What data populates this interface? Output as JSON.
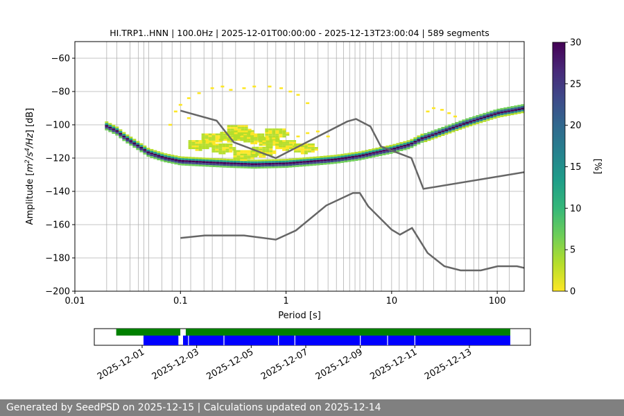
{
  "chart_data": [
    {
      "type": "heatmap",
      "title": "HI.TRP1..HNN | 100.0Hz | 2025-12-01T00:00:00 - 2025-12-13T23:00:04 | 589 segments",
      "xlabel": "Period [s]",
      "ylabel_parts": {
        "main": "Amplitude [",
        "m": "m",
        "e2": "2",
        "s": "/s",
        "e4": "4",
        "hz": "/Hz",
        "db": "] [dB]"
      },
      "x_scale": "log",
      "xlim": [
        0.01,
        180
      ],
      "ylim": [
        -200,
        -50
      ],
      "x_ticks": [
        {
          "v": 0.01,
          "label": "0.01"
        },
        {
          "v": 0.1,
          "label": "0.1"
        },
        {
          "v": 1,
          "label": "1"
        },
        {
          "v": 10,
          "label": "10"
        },
        {
          "v": 100,
          "label": "100"
        }
      ],
      "y_ticks": [
        {
          "v": -60,
          "label": "−60"
        },
        {
          "v": -80,
          "label": "−80"
        },
        {
          "v": -100,
          "label": "−100"
        },
        {
          "v": -120,
          "label": "−120"
        },
        {
          "v": -140,
          "label": "−140"
        },
        {
          "v": -160,
          "label": "−160"
        },
        {
          "v": -180,
          "label": "−180"
        },
        {
          "v": -200,
          "label": "−200"
        }
      ],
      "period_gridlines": [
        0.02,
        0.025,
        0.0333,
        0.04,
        0.045,
        0.05,
        0.0667,
        0.0833,
        0.1,
        0.125,
        0.167,
        0.2,
        0.25,
        0.333,
        0.5,
        0.667,
        0.8,
        1.0,
        1.2,
        1.5,
        2.0,
        2.5,
        3.0,
        3.5,
        4.0,
        4.5,
        5.0,
        5.7,
        6.7,
        8.0,
        10.0,
        11.8,
        14.0,
        17.0,
        20.0,
        25.0,
        33.0,
        40.0,
        50.0,
        60.0,
        67.0,
        80.0,
        100.0,
        130.0
      ],
      "grid": true,
      "mode_curve": [
        [
          0.02,
          -101
        ],
        [
          0.025,
          -104
        ],
        [
          0.03,
          -108
        ],
        [
          0.04,
          -113
        ],
        [
          0.05,
          -117
        ],
        [
          0.07,
          -120
        ],
        [
          0.1,
          -122
        ],
        [
          0.2,
          -123
        ],
        [
          0.3,
          -123.5
        ],
        [
          0.5,
          -124
        ],
        [
          1.0,
          -123.5
        ],
        [
          2.0,
          -122
        ],
        [
          3.0,
          -121
        ],
        [
          5.0,
          -119
        ],
        [
          7.0,
          -117
        ],
        [
          10.0,
          -115
        ],
        [
          15.0,
          -112
        ],
        [
          20.0,
          -108
        ],
        [
          30.0,
          -104
        ],
        [
          50.0,
          -99
        ],
        [
          100.0,
          -93
        ],
        [
          180.0,
          -90
        ]
      ],
      "noise_blob_points": [
        [
          0.2,
          -108
        ],
        [
          0.3,
          -107
        ],
        [
          0.4,
          -106
        ],
        [
          0.5,
          -108
        ],
        [
          0.7,
          -110
        ],
        [
          1.0,
          -112
        ],
        [
          1.5,
          -114
        ],
        [
          0.25,
          -114
        ],
        [
          0.4,
          -118
        ],
        [
          0.6,
          -116
        ],
        [
          0.8,
          -105
        ],
        [
          0.35,
          -103
        ],
        [
          0.15,
          -112
        ]
      ],
      "scatter_points": [
        [
          0.1,
          -88
        ],
        [
          0.12,
          -84
        ],
        [
          0.15,
          -81
        ],
        [
          0.2,
          -78
        ],
        [
          0.25,
          -77
        ],
        [
          0.3,
          -79
        ],
        [
          0.4,
          -78
        ],
        [
          0.5,
          -77
        ],
        [
          0.7,
          -77
        ],
        [
          0.9,
          -78
        ],
        [
          1.1,
          -80
        ],
        [
          1.3,
          -82
        ],
        [
          1.6,
          -87
        ],
        [
          0.09,
          -92
        ],
        [
          0.12,
          -96
        ],
        [
          0.08,
          -100
        ],
        [
          22,
          -92
        ],
        [
          25,
          -90
        ],
        [
          30,
          -91
        ],
        [
          35,
          -93
        ],
        [
          40,
          -95
        ],
        [
          1.3,
          -107
        ],
        [
          1.6,
          -105
        ],
        [
          2.0,
          -104
        ],
        [
          2.5,
          -107
        ]
      ],
      "high_noise_model": [
        [
          0.1,
          -91.5
        ],
        [
          0.22,
          -97.5
        ],
        [
          0.32,
          -110.5
        ],
        [
          0.8,
          -120
        ],
        [
          3.8,
          -98
        ],
        [
          4.6,
          -96.5
        ],
        [
          6.3,
          -101
        ],
        [
          7.9,
          -113
        ],
        [
          15.4,
          -120
        ],
        [
          20,
          -138.5
        ],
        [
          180,
          -128.5
        ]
      ],
      "low_noise_model": [
        [
          0.1,
          -168
        ],
        [
          0.17,
          -166.5
        ],
        [
          0.4,
          -166.5
        ],
        [
          0.8,
          -169
        ],
        [
          1.24,
          -163.5
        ],
        [
          2.4,
          -148.5
        ],
        [
          4.3,
          -141
        ],
        [
          5.0,
          -141
        ],
        [
          6.0,
          -149
        ],
        [
          10.0,
          -163
        ],
        [
          12.0,
          -166
        ],
        [
          15.6,
          -162
        ],
        [
          21.9,
          -177
        ],
        [
          31.6,
          -185
        ],
        [
          45,
          -187.5
        ],
        [
          70,
          -187.5
        ],
        [
          101,
          -185
        ],
        [
          154,
          -185
        ],
        [
          180,
          -186
        ]
      ],
      "colorbar": {
        "label": "[%]",
        "min": 0,
        "max": 30,
        "ticks": [
          {
            "v": 0,
            "label": "0"
          },
          {
            "v": 5,
            "label": "5"
          },
          {
            "v": 10,
            "label": "10"
          },
          {
            "v": 15,
            "label": "15"
          },
          {
            "v": 20,
            "label": "20"
          },
          {
            "v": 25,
            "label": "25"
          },
          {
            "v": 30,
            "label": "30"
          }
        ],
        "stops": [
          "#fde725",
          "#b5de2b",
          "#6ece58",
          "#35b779",
          "#1f9e89",
          "#26828e",
          "#31688e",
          "#3e4989",
          "#482878",
          "#440154"
        ]
      }
    },
    {
      "type": "timeline",
      "x_range_days": [
        0,
        13.9
      ],
      "date_ticks": [
        {
          "day": 0,
          "label": "2025-12-01"
        },
        {
          "day": 2,
          "label": "2025-12-03"
        },
        {
          "day": 4,
          "label": "2025-12-05"
        },
        {
          "day": 6,
          "label": "2025-12-07"
        },
        {
          "day": 8,
          "label": "2025-12-09"
        },
        {
          "day": 10,
          "label": "2025-12-11"
        },
        {
          "day": 12,
          "label": "2025-12-13"
        }
      ],
      "green_spans": [
        [
          -0.95,
          1.4
        ],
        [
          1.6,
          13.5
        ]
      ],
      "blue_spans": [
        [
          0.05,
          1.33
        ],
        [
          1.5,
          13.5
        ]
      ],
      "blue_gaps": [
        1.7,
        3.0,
        5.0,
        5.6,
        8.0,
        9.0,
        10.0
      ],
      "green_color": "#008000",
      "blue_color": "#0000ff"
    }
  ],
  "footer_text": "Generated by SeedPSD on 2025-12-15 | Calculations updated on 2025-12-14"
}
